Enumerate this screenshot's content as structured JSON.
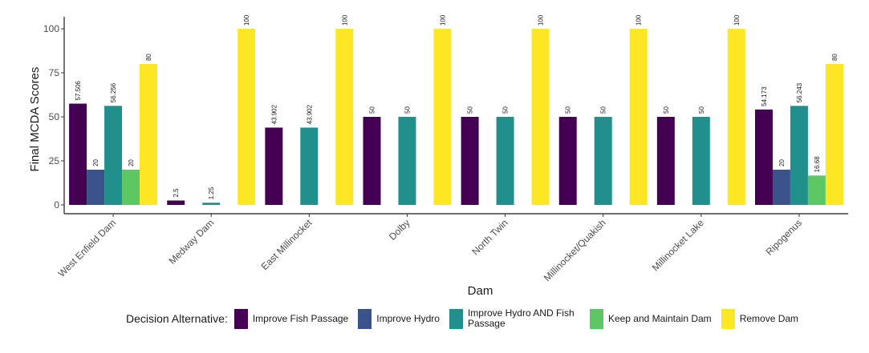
{
  "chart_data": {
    "type": "bar",
    "xlabel": "Dam",
    "ylabel": "Final MCDA Scores",
    "ylim": [
      0,
      100
    ],
    "yticks": [
      0,
      25,
      50,
      75,
      100
    ],
    "categories": [
      "West Enfield Dam",
      "Medway Dam",
      "East Millinocket",
      "Dolby",
      "North Twin",
      "Millinocket/Quakish",
      "Millinocket Lake",
      "Ripogenus"
    ],
    "legend_title": "Decision Alternative:",
    "legend_position": "bottom",
    "grid": false,
    "series": [
      {
        "name": "Improve Fish Passage",
        "color": "#440154",
        "values": [
          57.506,
          2.5,
          43.902,
          50,
          50,
          50,
          50,
          54.173
        ],
        "labels": [
          "57.506",
          "2.5",
          "43.902",
          "50",
          "50",
          "50",
          "50",
          "54.173"
        ]
      },
      {
        "name": "Improve Hydro",
        "color": "#3b528b",
        "values": [
          20,
          null,
          null,
          null,
          null,
          null,
          null,
          20
        ],
        "labels": [
          "20",
          null,
          null,
          null,
          null,
          null,
          null,
          "20"
        ]
      },
      {
        "name": "Improve Hydro AND Fish Passage",
        "color": "#21908c",
        "values": [
          56.256,
          1.25,
          43.902,
          50,
          50,
          50,
          50,
          56.243
        ],
        "labels": [
          "56.256",
          "1.25",
          "43.902",
          "50",
          "50",
          "50",
          "50",
          "56.243"
        ]
      },
      {
        "name": "Keep and Maintain Dam",
        "color": "#5dc863",
        "values": [
          20,
          null,
          null,
          null,
          null,
          null,
          null,
          16.68
        ],
        "labels": [
          "20",
          null,
          null,
          null,
          null,
          null,
          null,
          "16.68"
        ]
      },
      {
        "name": "Remove Dam",
        "color": "#fde725",
        "values": [
          80,
          100,
          100,
          100,
          100,
          100,
          100,
          80
        ],
        "labels": [
          "80",
          "100",
          "100",
          "100",
          "100",
          "100",
          "100",
          "80"
        ]
      }
    ]
  }
}
